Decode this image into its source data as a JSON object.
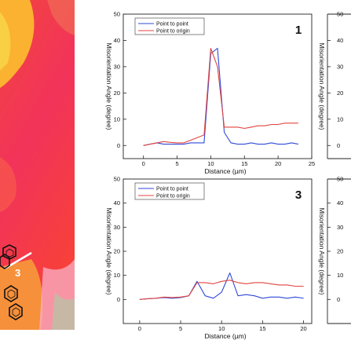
{
  "micrograph": {
    "line_label": "3"
  },
  "chart_data": [
    {
      "type": "line",
      "panel_label": "1",
      "xlabel": "Distance (µm)",
      "ylabel": "Misorientation Angle (degree)",
      "xlim": [
        -3,
        25
      ],
      "ylim": [
        -5,
        50
      ],
      "xticks": [
        0,
        5,
        10,
        15,
        20,
        25
      ],
      "yticks": [
        0,
        10,
        20,
        30,
        40,
        50
      ],
      "legend_position": "top-left",
      "series": [
        {
          "name": "Point to point",
          "color": "#2f4ad8",
          "x": [
            0,
            1,
            2,
            3,
            4,
            5,
            6,
            7,
            8,
            9,
            10,
            11,
            12,
            13,
            14,
            15,
            16,
            17,
            18,
            19,
            20,
            21,
            22,
            23
          ],
          "y": [
            0,
            0.5,
            1,
            0.5,
            0.5,
            0.5,
            0.5,
            1,
            1,
            1,
            35,
            37,
            5,
            1,
            0.5,
            0.5,
            1,
            0.5,
            0.5,
            1,
            0.5,
            0.5,
            1,
            0.5
          ]
        },
        {
          "name": "Point to origin",
          "color": "#e0453f",
          "x": [
            0,
            1,
            2,
            3,
            4,
            5,
            6,
            7,
            8,
            9,
            10,
            11,
            12,
            13,
            14,
            15,
            16,
            17,
            18,
            19,
            20,
            21,
            22,
            23
          ],
          "y": [
            0,
            0.5,
            1,
            1.5,
            1.2,
            1,
            1,
            2,
            3,
            4,
            37,
            30,
            7,
            7,
            7,
            6.5,
            7,
            7.5,
            7.5,
            8,
            8,
            8.5,
            8.5,
            8.5
          ]
        }
      ]
    },
    {
      "type": "line",
      "panel_label": "3",
      "xlabel": "Distance (µm)",
      "ylabel": "Misorientation Angle (degree)",
      "xlim": [
        -2,
        21
      ],
      "ylim": [
        -10,
        50
      ],
      "xticks": [
        0,
        5,
        10,
        15,
        20
      ],
      "yticks": [
        0,
        10,
        20,
        30,
        40,
        50
      ],
      "legend_position": "top-left",
      "series": [
        {
          "name": "Point to point",
          "color": "#2f4ad8",
          "x": [
            0,
            1,
            2,
            3,
            4,
            5,
            6,
            7,
            8,
            9,
            10,
            11,
            12,
            13,
            14,
            15,
            16,
            17,
            18,
            19,
            20
          ],
          "y": [
            0,
            0.3,
            0.5,
            0.8,
            0.5,
            0.8,
            1.5,
            7.5,
            1.5,
            0.5,
            3,
            11,
            1.5,
            2,
            1.5,
            0.5,
            1,
            1,
            0.5,
            1,
            0.5
          ]
        },
        {
          "name": "Point to origin",
          "color": "#e0453f",
          "x": [
            0,
            1,
            2,
            3,
            4,
            5,
            6,
            7,
            8,
            9,
            10,
            11,
            12,
            13,
            14,
            15,
            16,
            17,
            18,
            19,
            20
          ],
          "y": [
            0,
            0.3,
            0.5,
            1,
            0.8,
            1,
            1.5,
            7,
            7,
            6.5,
            7.5,
            8,
            7,
            6.5,
            7,
            7,
            6.5,
            6,
            6,
            5.5,
            5.5
          ]
        }
      ]
    }
  ],
  "partial_panels": [
    {
      "ylabel": "Misorientation Angle (degree)",
      "yticks": [
        0,
        10,
        20,
        30,
        40,
        50
      ],
      "ylim": [
        -5,
        50
      ]
    },
    {
      "ylabel": "Misorientation Angle (degree)",
      "yticks": [
        0,
        10,
        20,
        30,
        40,
        50
      ],
      "ylim": [
        -10,
        50
      ]
    }
  ]
}
